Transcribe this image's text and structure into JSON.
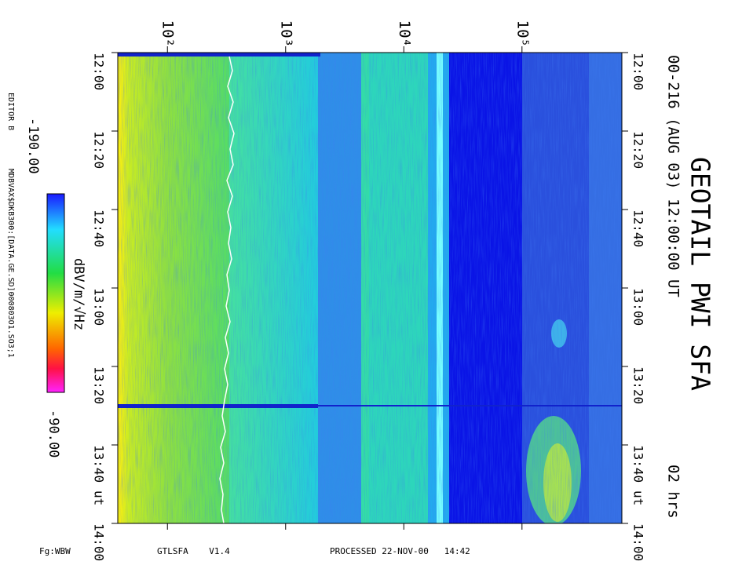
{
  "title": "GEOTAIL PWI SFA",
  "subtitle": "00-216 (AUG 03) 12:00:00 UT",
  "duration": "02 hrs",
  "editor": "EDITOR B",
  "file": "MDBVAX$DKB300:[DATA.GE.SD]000803O1.SO3;1",
  "footer": {
    "mode": "Fg:WBW",
    "program": "GTLSFA    V1.4",
    "processed": "PROCESSED 22-NOV-00   14:42"
  },
  "chart_data": {
    "type": "spectrogram",
    "x_log_scale": true,
    "xlim": [
      38,
      700000
    ],
    "xticks": [
      {
        "value": 100,
        "label": "10²"
      },
      {
        "value": 1000,
        "label": "10³"
      },
      {
        "value": 10000,
        "label": "10⁴"
      },
      {
        "value": 100000,
        "label": "10⁵"
      }
    ],
    "ylim": [
      0,
      120
    ],
    "yticks": [
      {
        "value": 0,
        "label": "12:00"
      },
      {
        "value": 20,
        "label": "12:20"
      },
      {
        "value": 40,
        "label": "12:40"
      },
      {
        "value": 60,
        "label": "13:00"
      },
      {
        "value": 80,
        "label": "13:20"
      },
      {
        "value": 100,
        "label": "13:40"
      },
      {
        "value": 120,
        "label": "14:00"
      }
    ],
    "y_unit": "ut",
    "colorbar": {
      "label": "dBV/m/√Hz",
      "ticks": [
        {
          "value": -190,
          "label": "-190.00"
        },
        {
          "value": -90,
          "label": "-90.00"
        }
      ]
    }
  }
}
